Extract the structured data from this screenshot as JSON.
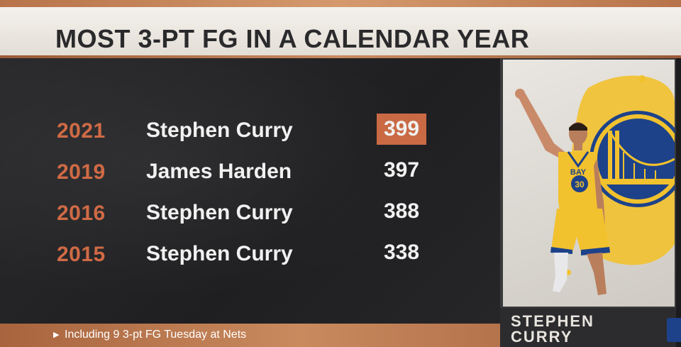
{
  "title": "MOST 3-PT FG IN A CALENDAR YEAR",
  "rows": [
    {
      "year": "2021",
      "player": "Stephen Curry",
      "value": "399",
      "highlighted": true
    },
    {
      "year": "2019",
      "player": "James Harden",
      "value": "397",
      "highlighted": false
    },
    {
      "year": "2016",
      "player": "Stephen Curry",
      "value": "388",
      "highlighted": false
    },
    {
      "year": "2015",
      "player": "Stephen Curry",
      "value": "338",
      "highlighted": false
    }
  ],
  "footnote": "Including 9 3-pt FG Tuesday at Nets",
  "name_plate": {
    "line1": "STEPHEN",
    "line2": "CURRY"
  },
  "jersey": {
    "text": "BAY",
    "number": "30"
  },
  "icons": {
    "footnote_marker": "triangle-right-icon",
    "team_logo": "golden-gate-bridge-logo",
    "network_logo": "network-logo"
  },
  "colors": {
    "accent": "#c96a45",
    "year_text": "#d06a45",
    "banner": "#f4f1ec",
    "panel": "#232325",
    "jersey_gold": "#f2c12e",
    "team_blue": "#1d428a"
  }
}
